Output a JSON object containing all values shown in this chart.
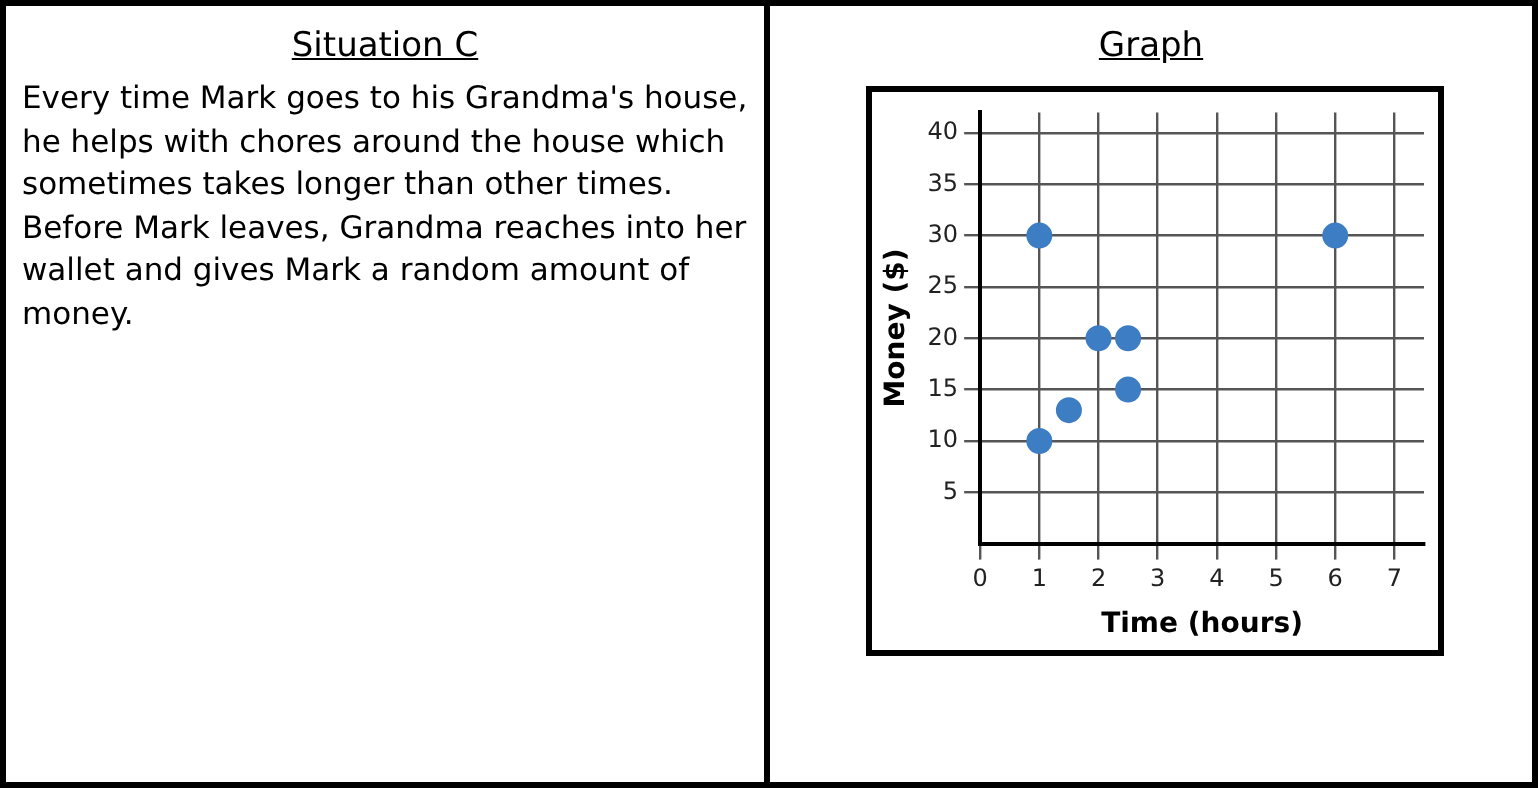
{
  "chart_data": [
    {
      "type": "other",
      "title": "Situation C",
      "annotations": [
        "Every time Mark goes to his Grandma's house, he helps with chores around the house which sometimes takes longer than other times. Before Mark leaves, Grandma reaches into her wallet and gives Mark a random amount of money."
      ]
    },
    {
      "type": "scatter",
      "title": "Graph",
      "xlabel": "Time (hours)",
      "ylabel": "Money ($)",
      "x": [
        1,
        1,
        1.5,
        2,
        2.5,
        2.5,
        6
      ],
      "values": [
        30,
        10,
        13,
        20,
        20,
        15,
        30
      ],
      "color": "#3d7dc3",
      "marker": "circle",
      "grid": true,
      "legend": false,
      "xlim": [
        0,
        7.5
      ],
      "xticks": [
        0,
        1,
        2,
        3,
        4,
        5,
        6,
        7
      ],
      "ylim": [
        0,
        42
      ],
      "yticks": [
        5,
        10,
        15,
        20,
        25,
        30,
        35,
        40
      ]
    }
  ]
}
